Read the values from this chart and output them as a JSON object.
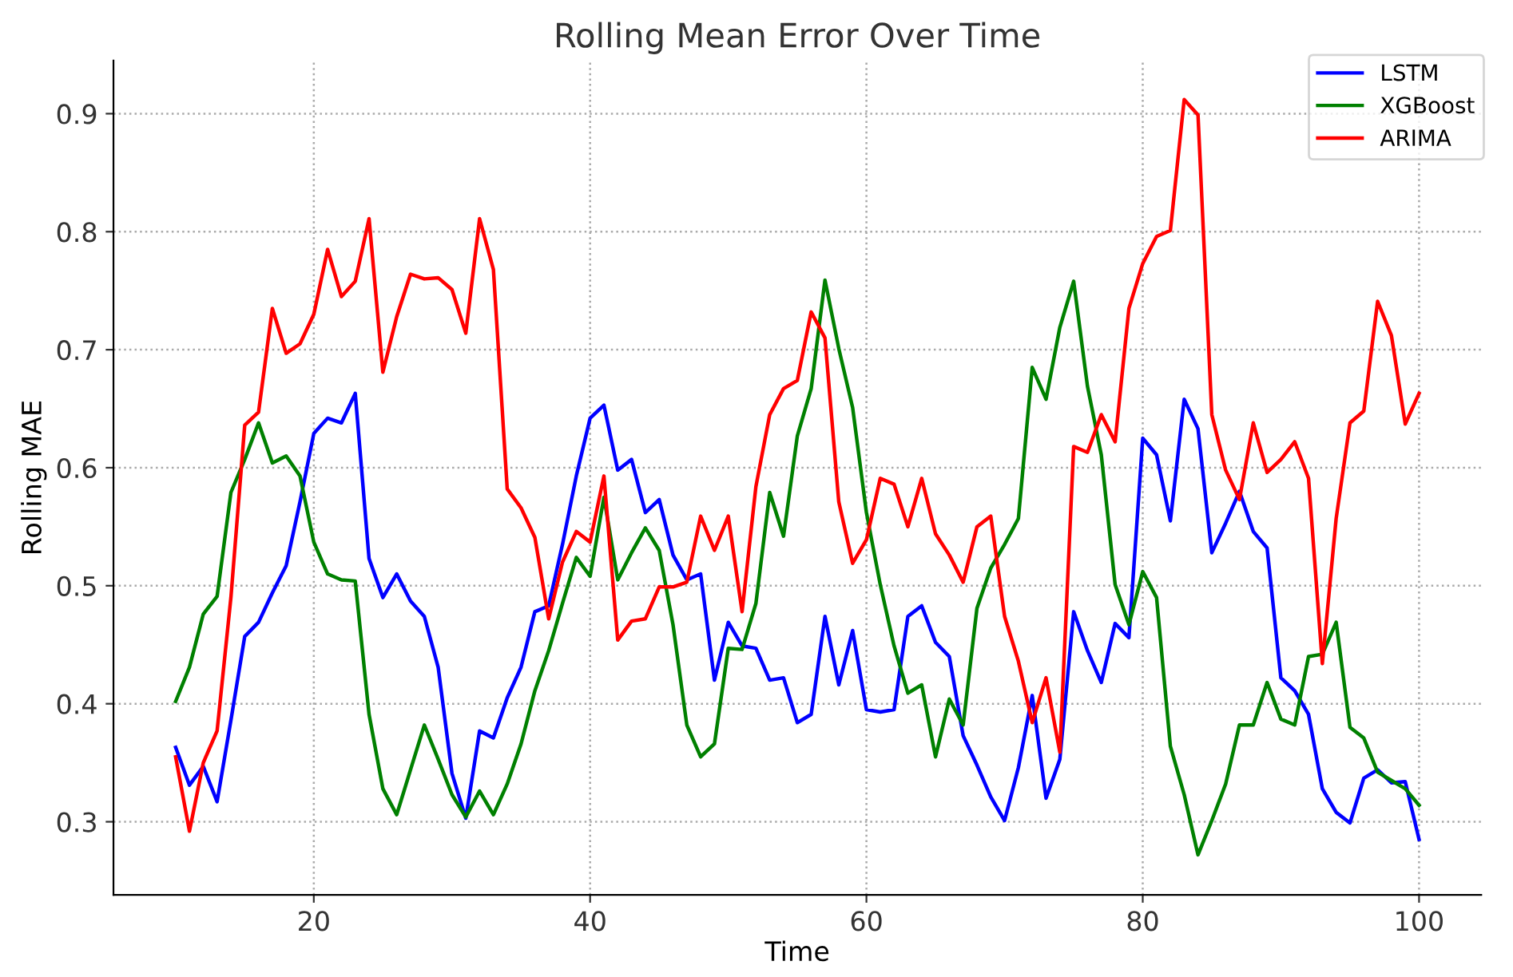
{
  "chart_data": {
    "type": "line",
    "title": "Rolling Mean Error Over Time",
    "xlabel": "Time",
    "ylabel": "Rolling MAE",
    "x": [
      10,
      11,
      12,
      13,
      14,
      15,
      16,
      17,
      18,
      19,
      20,
      21,
      22,
      23,
      24,
      25,
      26,
      27,
      28,
      29,
      30,
      31,
      32,
      33,
      34,
      35,
      36,
      37,
      38,
      39,
      40,
      41,
      42,
      43,
      44,
      45,
      46,
      47,
      48,
      49,
      50,
      51,
      52,
      53,
      54,
      55,
      56,
      57,
      58,
      59,
      60,
      61,
      62,
      63,
      64,
      65,
      66,
      67,
      68,
      69,
      70,
      71,
      72,
      73,
      74,
      75,
      76,
      77,
      78,
      79,
      80,
      81,
      82,
      83,
      84,
      85,
      86,
      87,
      88,
      89,
      90,
      91,
      92,
      93,
      94,
      95,
      96,
      97,
      98,
      99,
      100
    ],
    "series": [
      {
        "name": "LSTM",
        "color": "#0000ff",
        "values": [
          0.363,
          0.331,
          0.347,
          0.317,
          0.386,
          0.457,
          0.469,
          0.494,
          0.517,
          0.571,
          0.629,
          0.642,
          0.638,
          0.663,
          0.523,
          0.49,
          0.51,
          0.487,
          0.474,
          0.431,
          0.341,
          0.303,
          0.377,
          0.371,
          0.405,
          0.431,
          0.478,
          0.483,
          0.535,
          0.593,
          0.642,
          0.653,
          0.598,
          0.607,
          0.562,
          0.573,
          0.526,
          0.505,
          0.51,
          0.42,
          0.469,
          0.449,
          0.447,
          0.42,
          0.422,
          0.384,
          0.391,
          0.474,
          0.416,
          0.462,
          0.395,
          0.393,
          0.395,
          0.474,
          0.483,
          0.452,
          0.44,
          0.373,
          0.348,
          0.321,
          0.301,
          0.346,
          0.407,
          0.32,
          0.353,
          0.478,
          0.445,
          0.418,
          0.468,
          0.456,
          0.625,
          0.611,
          0.555,
          0.658,
          0.633,
          0.528,
          0.553,
          0.58,
          0.546,
          0.532,
          0.422,
          0.411,
          0.391,
          0.328,
          0.308,
          0.299,
          0.337,
          0.344,
          0.333,
          0.334,
          0.285
        ]
      },
      {
        "name": "XGBoost",
        "color": "#008000",
        "values": [
          0.402,
          0.431,
          0.476,
          0.491,
          0.579,
          0.607,
          0.638,
          0.604,
          0.61,
          0.593,
          0.537,
          0.51,
          0.505,
          0.504,
          0.391,
          0.328,
          0.306,
          0.344,
          0.382,
          0.353,
          0.323,
          0.304,
          0.326,
          0.306,
          0.332,
          0.366,
          0.411,
          0.445,
          0.485,
          0.524,
          0.508,
          0.575,
          0.505,
          0.528,
          0.549,
          0.53,
          0.467,
          0.382,
          0.355,
          0.366,
          0.447,
          0.446,
          0.485,
          0.579,
          0.542,
          0.627,
          0.667,
          0.759,
          0.701,
          0.651,
          0.562,
          0.501,
          0.449,
          0.409,
          0.416,
          0.355,
          0.404,
          0.382,
          0.481,
          0.515,
          0.535,
          0.557,
          0.685,
          0.658,
          0.719,
          0.758,
          0.669,
          0.611,
          0.501,
          0.467,
          0.512,
          0.49,
          0.364,
          0.323,
          0.272,
          0.301,
          0.332,
          0.382,
          0.382,
          0.418,
          0.387,
          0.382,
          0.44,
          0.442,
          0.469,
          0.38,
          0.371,
          0.342,
          0.335,
          0.328,
          0.314
        ]
      },
      {
        "name": "ARIMA",
        "color": "#ff0000",
        "values": [
          0.355,
          0.292,
          0.35,
          0.377,
          0.49,
          0.636,
          0.647,
          0.735,
          0.697,
          0.705,
          0.73,
          0.785,
          0.745,
          0.758,
          0.811,
          0.681,
          0.728,
          0.764,
          0.76,
          0.761,
          0.751,
          0.714,
          0.811,
          0.768,
          0.582,
          0.566,
          0.541,
          0.472,
          0.52,
          0.546,
          0.537,
          0.593,
          0.454,
          0.47,
          0.472,
          0.499,
          0.499,
          0.503,
          0.559,
          0.53,
          0.559,
          0.478,
          0.584,
          0.645,
          0.667,
          0.674,
          0.732,
          0.71,
          0.571,
          0.519,
          0.539,
          0.591,
          0.586,
          0.55,
          0.591,
          0.544,
          0.526,
          0.503,
          0.55,
          0.559,
          0.474,
          0.436,
          0.384,
          0.422,
          0.359,
          0.618,
          0.613,
          0.645,
          0.622,
          0.735,
          0.773,
          0.796,
          0.801,
          0.912,
          0.899,
          0.645,
          0.598,
          0.573,
          0.638,
          0.596,
          0.607,
          0.622,
          0.591,
          0.434,
          0.557,
          0.638,
          0.648,
          0.741,
          0.712,
          0.637,
          0.663
        ]
      }
    ],
    "xlim": [
      5.5,
      104.5
    ],
    "ylim": [
      0.238,
      0.945
    ],
    "xticks": [
      20,
      40,
      60,
      80,
      100
    ],
    "yticks": [
      0.3,
      0.4,
      0.5,
      0.6,
      0.7,
      0.8,
      0.9
    ],
    "grid": true,
    "legend": "top right",
    "marker": "none",
    "line_style": "solid"
  }
}
